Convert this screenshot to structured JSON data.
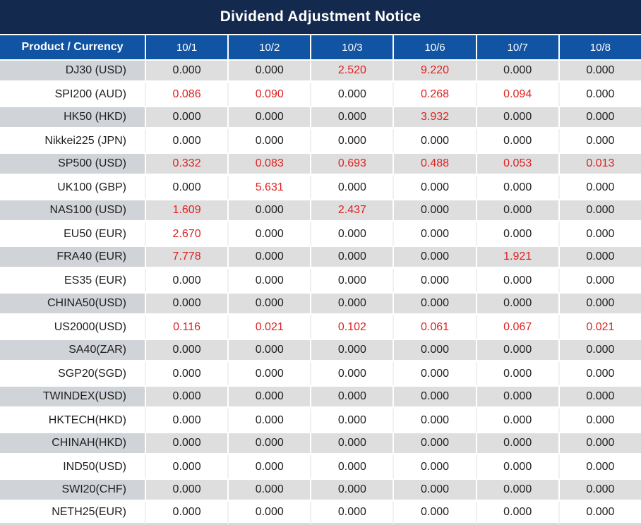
{
  "title": "Dividend Adjustment Notice",
  "colors": {
    "title_bar_navy": "#13294d",
    "header_blue": "#1254a4",
    "stripe_gray": "#dedede",
    "product_col_gray": "#d0d3d7",
    "value_red": "#e02020",
    "value_black": "#1e1e20"
  },
  "chart_data": {
    "type": "table",
    "title": "Dividend Adjustment Notice",
    "product_header": "Product / Currency",
    "date_headers": [
      "10/1",
      "10/2",
      "10/3",
      "10/6",
      "10/7",
      "10/8"
    ],
    "rows": [
      {
        "product": "DJ30 (USD)",
        "values": [
          "0.000",
          "0.000",
          "2.520",
          "9.220",
          "0.000",
          "0.000"
        ]
      },
      {
        "product": "SPI200 (AUD)",
        "values": [
          "0.086",
          "0.090",
          "0.000",
          "0.268",
          "0.094",
          "0.000"
        ]
      },
      {
        "product": "HK50 (HKD)",
        "values": [
          "0.000",
          "0.000",
          "0.000",
          "3.932",
          "0.000",
          "0.000"
        ]
      },
      {
        "product": "Nikkei225 (JPN)",
        "values": [
          "0.000",
          "0.000",
          "0.000",
          "0.000",
          "0.000",
          "0.000"
        ]
      },
      {
        "product": "SP500 (USD)",
        "values": [
          "0.332",
          "0.083",
          "0.693",
          "0.488",
          "0.053",
          "0.013"
        ]
      },
      {
        "product": "UK100 (GBP)",
        "values": [
          "0.000",
          "5.631",
          "0.000",
          "0.000",
          "0.000",
          "0.000"
        ]
      },
      {
        "product": "NAS100 (USD)",
        "values": [
          "1.609",
          "0.000",
          "2.437",
          "0.000",
          "0.000",
          "0.000"
        ]
      },
      {
        "product": "EU50 (EUR)",
        "values": [
          "2.670",
          "0.000",
          "0.000",
          "0.000",
          "0.000",
          "0.000"
        ]
      },
      {
        "product": "FRA40 (EUR)",
        "values": [
          "7.778",
          "0.000",
          "0.000",
          "0.000",
          "1.921",
          "0.000"
        ]
      },
      {
        "product": "ES35 (EUR)",
        "values": [
          "0.000",
          "0.000",
          "0.000",
          "0.000",
          "0.000",
          "0.000"
        ]
      },
      {
        "product": "CHINA50(USD)",
        "values": [
          "0.000",
          "0.000",
          "0.000",
          "0.000",
          "0.000",
          "0.000"
        ]
      },
      {
        "product": "US2000(USD)",
        "values": [
          "0.116",
          "0.021",
          "0.102",
          "0.061",
          "0.067",
          "0.021"
        ]
      },
      {
        "product": "SA40(ZAR)",
        "values": [
          "0.000",
          "0.000",
          "0.000",
          "0.000",
          "0.000",
          "0.000"
        ]
      },
      {
        "product": "SGP20(SGD)",
        "values": [
          "0.000",
          "0.000",
          "0.000",
          "0.000",
          "0.000",
          "0.000"
        ]
      },
      {
        "product": "TWINDEX(USD)",
        "values": [
          "0.000",
          "0.000",
          "0.000",
          "0.000",
          "0.000",
          "0.000"
        ]
      },
      {
        "product": "HKTECH(HKD)",
        "values": [
          "0.000",
          "0.000",
          "0.000",
          "0.000",
          "0.000",
          "0.000"
        ]
      },
      {
        "product": "CHINAH(HKD)",
        "values": [
          "0.000",
          "0.000",
          "0.000",
          "0.000",
          "0.000",
          "0.000"
        ]
      },
      {
        "product": "IND50(USD)",
        "values": [
          "0.000",
          "0.000",
          "0.000",
          "0.000",
          "0.000",
          "0.000"
        ]
      },
      {
        "product": "SWI20(CHF)",
        "values": [
          "0.000",
          "0.000",
          "0.000",
          "0.000",
          "0.000",
          "0.000"
        ]
      },
      {
        "product": "NETH25(EUR)",
        "values": [
          "0.000",
          "0.000",
          "0.000",
          "0.000",
          "0.000",
          "0.000"
        ]
      }
    ]
  }
}
